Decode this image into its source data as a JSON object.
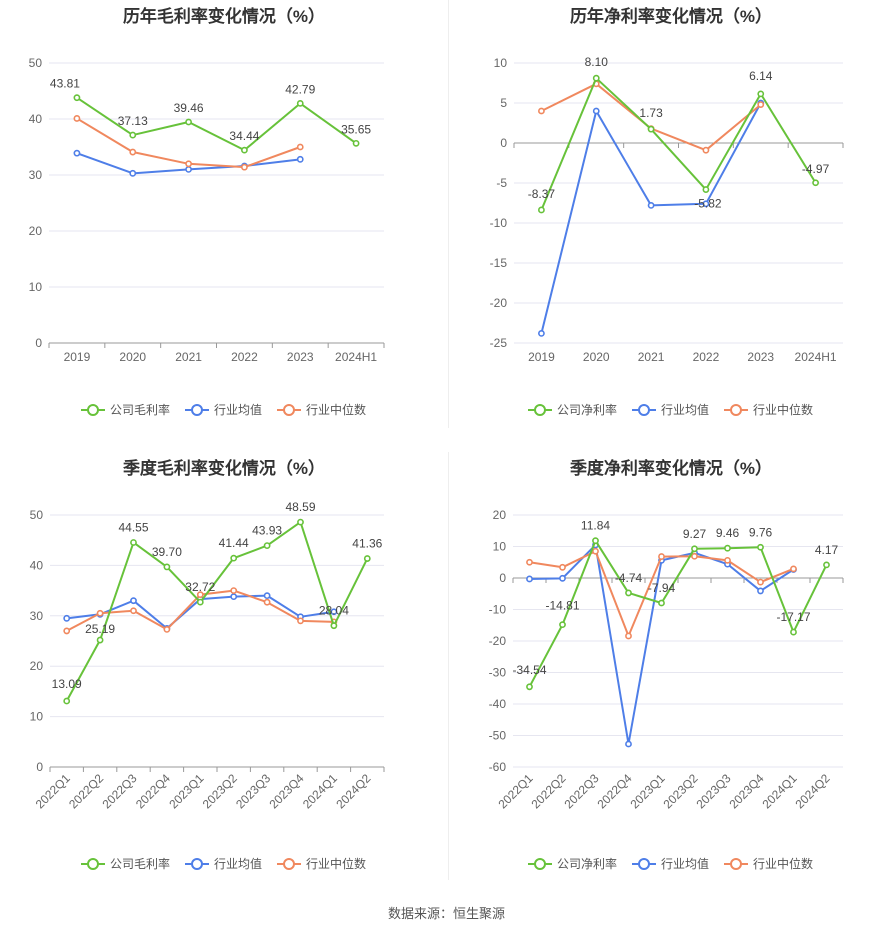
{
  "colors": {
    "company": "#67c23a",
    "industry_avg": "#4e7ee8",
    "industry_median": "#f0885e"
  },
  "legend_labels_gross": [
    "公司毛利率",
    "行业均值",
    "行业中位数"
  ],
  "legend_labels_net": [
    "公司净利率",
    "行业均值",
    "行业中位数"
  ],
  "source": "数据来源：恒生聚源",
  "chart_data": [
    {
      "type": "line",
      "title": "历年毛利率变化情况（%）",
      "categories": [
        "2019",
        "2020",
        "2021",
        "2022",
        "2023",
        "2024H1"
      ],
      "ylim": [
        0,
        50
      ],
      "yticks": [
        0,
        10,
        20,
        30,
        40,
        50
      ],
      "grid": true,
      "legend_position": "bottom",
      "series": [
        {
          "name": "公司毛利率",
          "values": [
            43.81,
            37.13,
            39.46,
            34.44,
            42.79,
            35.65
          ],
          "labeled": true
        },
        {
          "name": "行业均值",
          "values": [
            33.9,
            30.3,
            31.0,
            31.6,
            32.8,
            null
          ]
        },
        {
          "name": "行业中位数",
          "values": [
            40.1,
            34.1,
            32.0,
            31.4,
            35.0,
            null
          ]
        }
      ]
    },
    {
      "type": "line",
      "title": "历年净利率变化情况（%）",
      "categories": [
        "2019",
        "2020",
        "2021",
        "2022",
        "2023",
        "2024H1"
      ],
      "ylim": [
        -25,
        10
      ],
      "yticks": [
        -25,
        -20,
        -15,
        -10,
        -5,
        0,
        5,
        10
      ],
      "grid": true,
      "legend_position": "bottom",
      "series": [
        {
          "name": "公司净利率",
          "values": [
            -8.37,
            8.1,
            1.73,
            -5.82,
            6.14,
            -4.97
          ],
          "labeled": true
        },
        {
          "name": "行业均值",
          "values": [
            -23.8,
            4.0,
            -7.8,
            -7.6,
            5.0,
            null
          ]
        },
        {
          "name": "行业中位数",
          "values": [
            4.0,
            7.4,
            1.8,
            -0.9,
            4.8,
            null
          ]
        }
      ]
    },
    {
      "type": "line",
      "title": "季度毛利率变化情况（%）",
      "categories": [
        "2022Q1",
        "2022Q2",
        "2022Q3",
        "2022Q4",
        "2023Q1",
        "2023Q2",
        "2023Q3",
        "2023Q4",
        "2024Q1",
        "2024Q2"
      ],
      "ylim": [
        0,
        50
      ],
      "yticks": [
        0,
        10,
        20,
        30,
        40,
        50
      ],
      "grid": true,
      "legend_position": "bottom",
      "series": [
        {
          "name": "公司毛利率",
          "values": [
            13.09,
            25.19,
            44.55,
            39.7,
            32.72,
            41.44,
            43.93,
            48.59,
            28.04,
            41.36
          ],
          "labeled": true
        },
        {
          "name": "行业均值",
          "values": [
            29.5,
            30.3,
            33.0,
            27.5,
            33.3,
            33.8,
            34.0,
            29.8,
            30.8,
            null
          ]
        },
        {
          "name": "行业中位数",
          "values": [
            27.0,
            30.5,
            31.0,
            27.3,
            34.2,
            35.0,
            32.7,
            29.0,
            28.8,
            null
          ]
        }
      ]
    },
    {
      "type": "line",
      "title": "季度净利率变化情况（%）",
      "categories": [
        "2022Q1",
        "2022Q2",
        "2022Q3",
        "2022Q4",
        "2023Q1",
        "2023Q2",
        "2023Q3",
        "2023Q4",
        "2024Q1",
        "2024Q2"
      ],
      "ylim": [
        -60,
        20
      ],
      "yticks": [
        -60,
        -50,
        -40,
        -30,
        -20,
        -10,
        0,
        10,
        20
      ],
      "grid": true,
      "legend_position": "bottom",
      "series": [
        {
          "name": "公司净利率",
          "values": [
            -34.54,
            -14.81,
            11.84,
            -4.74,
            -7.94,
            9.27,
            9.46,
            9.76,
            -17.17,
            4.17
          ],
          "labeled": true
        },
        {
          "name": "行业均值",
          "values": [
            -0.3,
            -0.1,
            10.5,
            -52.7,
            5.6,
            8.0,
            4.4,
            -4.1,
            2.7,
            null
          ]
        },
        {
          "name": "行业中位数",
          "values": [
            5.0,
            3.4,
            8.5,
            -18.4,
            6.8,
            6.9,
            5.6,
            -1.3,
            2.9,
            null
          ]
        }
      ]
    }
  ]
}
